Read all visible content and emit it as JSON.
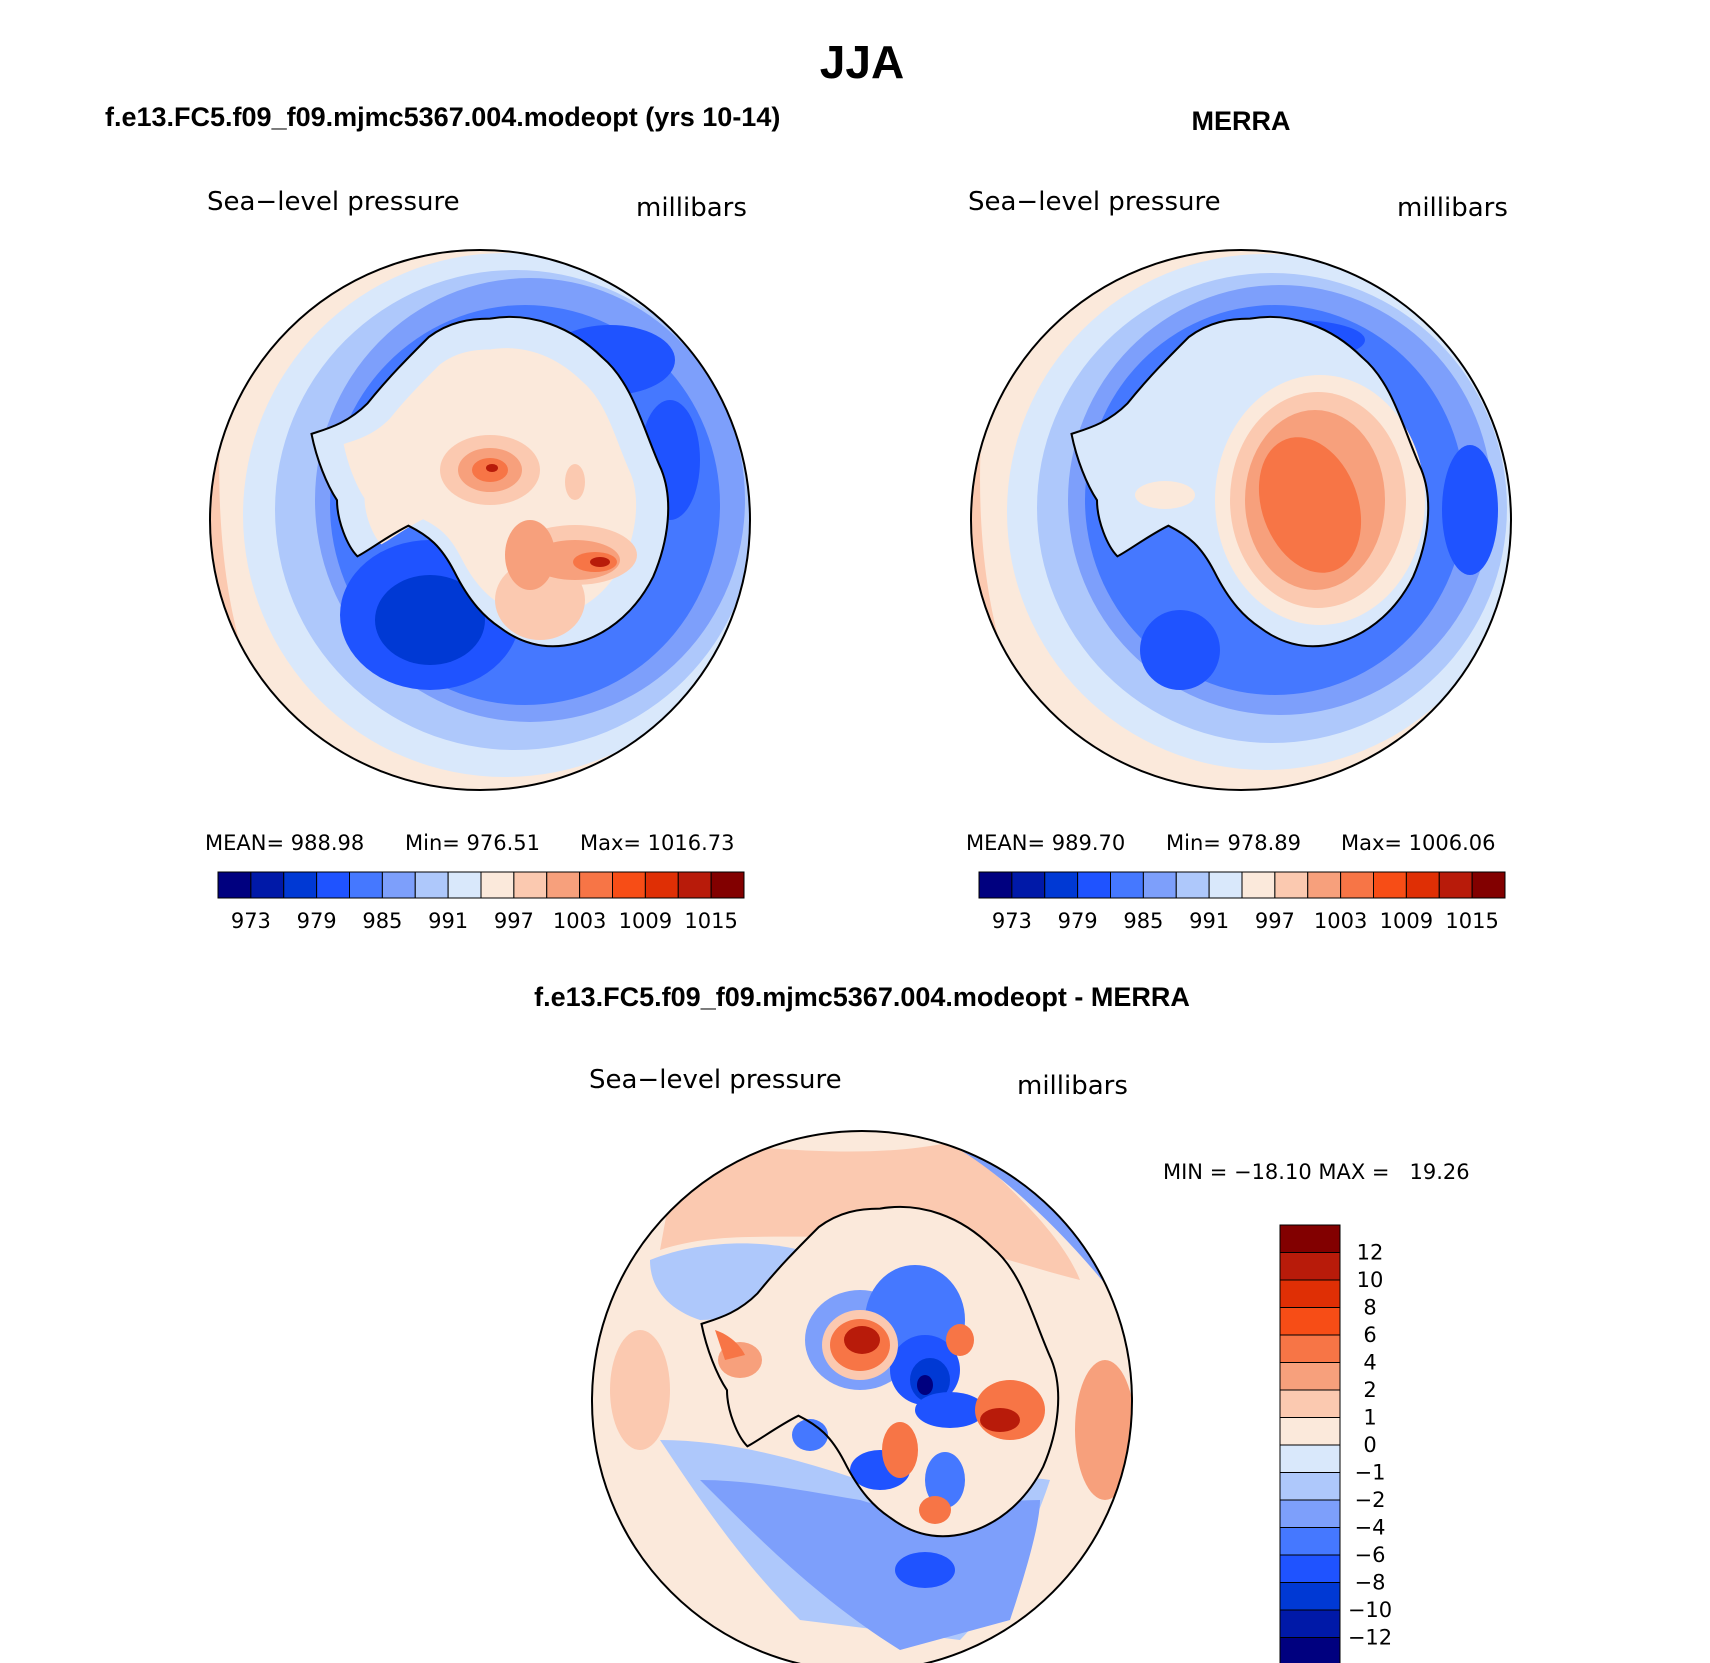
{
  "title": "JJA",
  "panels": [
    {
      "id": "model",
      "header": "f.e13.FC5.f09_f09.mjmc5367.004.modeopt (yrs 10-14)",
      "variable": "Sea−level pressure",
      "units": "millibars",
      "stats": {
        "mean": "MEAN= 988.98",
        "min": "Min= 976.51",
        "max": "Max= 1016.73"
      }
    },
    {
      "id": "merra",
      "header": "MERRA",
      "variable": "Sea−level pressure",
      "units": "millibars",
      "stats": {
        "mean": "MEAN= 989.70",
        "min": "Min= 978.89",
        "max": "Max= 1006.06"
      }
    },
    {
      "id": "diff",
      "header": "f.e13.FC5.f09_f09.mjmc5367.004.modeopt - MERRA",
      "variable": "Sea−level pressure",
      "units": "millibars",
      "minmax": "MIN = −18.10 MAX =   19.26"
    }
  ],
  "colorbar_abs": {
    "colors": [
      "#00007f",
      "#0019a8",
      "#0039d4",
      "#1f53ff",
      "#4578ff",
      "#7d9ffb",
      "#aec8fb",
      "#d9e8fb",
      "#fbe9db",
      "#fbc9b0",
      "#f7a07c",
      "#f77546",
      "#f74d16",
      "#df2f05",
      "#b81b0a",
      "#820000"
    ],
    "labels": [
      "973",
      "979",
      "985",
      "991",
      "997",
      "1003",
      "1009",
      "1015"
    ]
  },
  "colorbar_diff": {
    "colors": [
      "#820000",
      "#b81b0a",
      "#df2f05",
      "#f74d16",
      "#f77546",
      "#f7a07c",
      "#fbc9b0",
      "#fbe9db",
      "#d9e8fb",
      "#aec8fb",
      "#7d9ffb",
      "#4578ff",
      "#1f53ff",
      "#0039d4",
      "#0019a8",
      "#00007f"
    ],
    "labels": [
      "12",
      "10",
      "8",
      "6",
      "4",
      "2",
      "1",
      "0",
      "−1",
      "−2",
      "−4",
      "−6",
      "−8",
      "−10",
      "−12"
    ]
  }
}
